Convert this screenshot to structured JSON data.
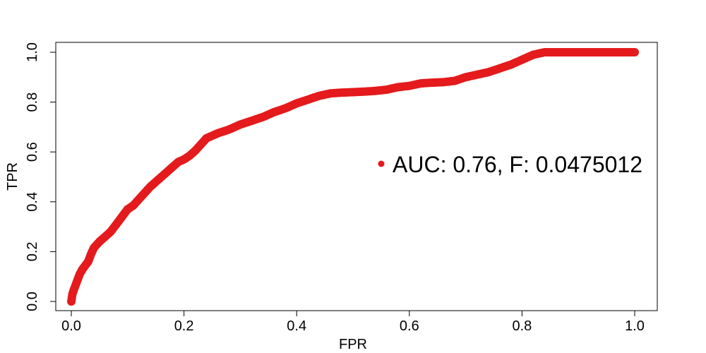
{
  "chart_data": {
    "type": "scatter",
    "title": "",
    "xlabel": "FPR",
    "ylabel": "TPR",
    "xlim": [
      0,
      1
    ],
    "ylim": [
      0,
      1
    ],
    "x_ticks": [
      "0.0",
      "0.2",
      "0.4",
      "0.6",
      "0.8",
      "1.0"
    ],
    "y_ticks": [
      "0.0",
      "0.2",
      "0.4",
      "0.6",
      "0.8",
      "1.0"
    ],
    "grid": false,
    "legend_position": "right",
    "legend_label": "AUC: 0.76, F: 0.0475012",
    "series": [
      {
        "name": "AUC: 0.76, F: 0.0475012",
        "color": "#E41A1C",
        "points": [
          [
            0.0,
            0.0
          ],
          [
            0.002,
            0.03
          ],
          [
            0.005,
            0.05
          ],
          [
            0.01,
            0.08
          ],
          [
            0.015,
            0.11
          ],
          [
            0.02,
            0.13
          ],
          [
            0.025,
            0.145
          ],
          [
            0.03,
            0.16
          ],
          [
            0.035,
            0.19
          ],
          [
            0.04,
            0.215
          ],
          [
            0.05,
            0.24
          ],
          [
            0.06,
            0.26
          ],
          [
            0.07,
            0.28
          ],
          [
            0.08,
            0.31
          ],
          [
            0.09,
            0.34
          ],
          [
            0.1,
            0.37
          ],
          [
            0.11,
            0.385
          ],
          [
            0.12,
            0.41
          ],
          [
            0.13,
            0.435
          ],
          [
            0.14,
            0.46
          ],
          [
            0.15,
            0.48
          ],
          [
            0.16,
            0.5
          ],
          [
            0.17,
            0.52
          ],
          [
            0.18,
            0.54
          ],
          [
            0.19,
            0.56
          ],
          [
            0.2,
            0.57
          ],
          [
            0.21,
            0.585
          ],
          [
            0.22,
            0.605
          ],
          [
            0.23,
            0.63
          ],
          [
            0.24,
            0.655
          ],
          [
            0.25,
            0.665
          ],
          [
            0.26,
            0.675
          ],
          [
            0.28,
            0.69
          ],
          [
            0.3,
            0.71
          ],
          [
            0.32,
            0.725
          ],
          [
            0.34,
            0.74
          ],
          [
            0.36,
            0.76
          ],
          [
            0.38,
            0.775
          ],
          [
            0.4,
            0.795
          ],
          [
            0.42,
            0.81
          ],
          [
            0.44,
            0.825
          ],
          [
            0.46,
            0.835
          ],
          [
            0.48,
            0.838
          ],
          [
            0.5,
            0.84
          ],
          [
            0.52,
            0.842
          ],
          [
            0.54,
            0.845
          ],
          [
            0.56,
            0.85
          ],
          [
            0.58,
            0.86
          ],
          [
            0.6,
            0.865
          ],
          [
            0.62,
            0.875
          ],
          [
            0.64,
            0.878
          ],
          [
            0.66,
            0.88
          ],
          [
            0.68,
            0.885
          ],
          [
            0.7,
            0.9
          ],
          [
            0.72,
            0.91
          ],
          [
            0.74,
            0.92
          ],
          [
            0.76,
            0.935
          ],
          [
            0.78,
            0.95
          ],
          [
            0.8,
            0.97
          ],
          [
            0.82,
            0.99
          ],
          [
            0.84,
            1.0
          ],
          [
            0.86,
            1.0
          ],
          [
            0.88,
            1.0
          ],
          [
            0.9,
            1.0
          ],
          [
            0.92,
            1.0
          ],
          [
            0.94,
            1.0
          ],
          [
            0.96,
            1.0
          ],
          [
            0.98,
            1.0
          ],
          [
            1.0,
            1.0
          ]
        ]
      }
    ]
  }
}
